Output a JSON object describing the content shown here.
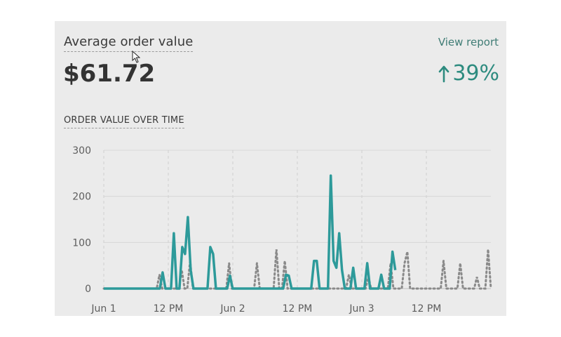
{
  "card": {
    "title": "Average order value",
    "view_report_label": "View report",
    "value": "$61.72",
    "change": "39%",
    "change_direction_icon": "arrow-up-icon",
    "section_title": "ORDER VALUE OVER TIME",
    "accent_color": "#2d9a9a",
    "comparison_color": "#8a8a8a"
  },
  "chart_data": {
    "type": "line",
    "ylim": [
      0,
      300
    ],
    "y_ticks": [
      "300",
      "200",
      "100",
      "0"
    ],
    "x_tick_labels": [
      "Jun 1",
      "12 PM",
      "Jun 2",
      "12 PM",
      "Jun 3",
      "12 PM"
    ],
    "grid": true,
    "series": [
      {
        "values": [
          0,
          0,
          0,
          0,
          0,
          0,
          0,
          0,
          0,
          0,
          0,
          0,
          0,
          0,
          0,
          0,
          0,
          0,
          0,
          0,
          0,
          35,
          0,
          0,
          0,
          120,
          0,
          0,
          90,
          75,
          155,
          40,
          0,
          0,
          0,
          0,
          0,
          0,
          90,
          75,
          0,
          0,
          0,
          0,
          0,
          28,
          0,
          0,
          0,
          0,
          0,
          0,
          0,
          0,
          0,
          0,
          0,
          0,
          0,
          0,
          0,
          0,
          0,
          0,
          0,
          30,
          28,
          0,
          0,
          0,
          0,
          0,
          0,
          0,
          0,
          60,
          60,
          0,
          0,
          0,
          0,
          245,
          60,
          45,
          120,
          40,
          0,
          0,
          0,
          45,
          0,
          0,
          0,
          0,
          55,
          0,
          0,
          0,
          0,
          30,
          0,
          0,
          0,
          80,
          40
        ]
      },
      {
        "values": [
          0,
          0,
          0,
          0,
          0,
          0,
          0,
          0,
          0,
          0,
          0,
          0,
          0,
          0,
          0,
          0,
          0,
          0,
          0,
          0,
          30,
          0,
          0,
          0,
          0,
          0,
          0,
          0,
          40,
          0,
          0,
          60,
          0,
          0,
          0,
          0,
          0,
          0,
          0,
          0,
          0,
          0,
          0,
          0,
          0,
          55,
          0,
          0,
          0,
          0,
          0,
          0,
          0,
          0,
          0,
          55,
          0,
          0,
          0,
          0,
          0,
          0,
          85,
          0,
          0,
          60,
          0,
          0,
          0,
          0,
          0,
          0,
          0,
          0,
          0,
          0,
          0,
          0,
          0,
          0,
          0,
          0,
          0,
          0,
          0,
          0,
          0,
          0,
          30,
          0,
          0,
          0,
          0,
          0,
          0,
          25,
          0,
          0,
          0,
          0,
          0,
          0,
          0,
          55,
          0,
          0,
          0,
          0,
          55,
          80,
          0,
          0,
          0,
          0,
          0,
          0,
          0,
          0,
          0,
          0,
          0,
          0,
          60,
          0,
          0,
          0,
          0,
          0,
          55,
          0,
          0,
          0,
          0,
          0,
          25,
          0,
          0,
          0,
          85,
          0
        ]
      }
    ]
  }
}
